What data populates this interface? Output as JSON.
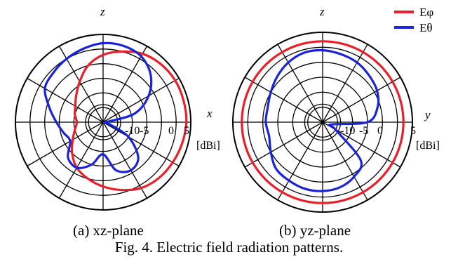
{
  "chart_data": [
    {
      "type": "polar-line",
      "plane_label": "(a)   xz-plane",
      "angular_axis_labels": {
        "top": "z",
        "right": "x"
      },
      "radial_ticks": [
        "-10",
        "-5",
        "0",
        "5"
      ],
      "radial_unit": "[dBi]",
      "radial_range": [
        -25,
        5
      ],
      "radial_gridlines": [
        -25,
        -20,
        -15,
        -10,
        -5,
        0,
        5
      ],
      "angular_gridline_step_deg": 30,
      "angle_convention": "degrees from z (top), clockwise toward x (right)",
      "series": [
        {
          "name": "Eφ",
          "color": "#e8202a",
          "points": [
            [
              0,
              -2
            ],
            [
              15,
              0
            ],
            [
              30,
              2
            ],
            [
              45,
              3
            ],
            [
              60,
              3.5
            ],
            [
              75,
              3.5
            ],
            [
              90,
              3.5
            ],
            [
              105,
              3
            ],
            [
              120,
              2.5
            ],
            [
              135,
              2
            ],
            [
              150,
              1
            ],
            [
              165,
              -1
            ],
            [
              180,
              -3
            ],
            [
              195,
              -5
            ],
            [
              210,
              -7
            ],
            [
              225,
              -10
            ],
            [
              240,
              -13
            ],
            [
              255,
              -15
            ],
            [
              270,
              -16
            ],
            [
              285,
              -15
            ],
            [
              300,
              -14
            ],
            [
              315,
              -12
            ],
            [
              330,
              -9
            ],
            [
              345,
              -5
            ],
            [
              360,
              -2
            ]
          ]
        },
        {
          "name": "Eθ",
          "color": "#1a24d6",
          "points": [
            [
              0,
              2
            ],
            [
              15,
              2
            ],
            [
              30,
              1
            ],
            [
              45,
              -2
            ],
            [
              60,
              -7
            ],
            [
              75,
              -14
            ],
            [
              90,
              -24
            ],
            [
              105,
              -23
            ],
            [
              120,
              -15
            ],
            [
              135,
              -8
            ],
            [
              150,
              -6
            ],
            [
              165,
              -8
            ],
            [
              180,
              -14
            ],
            [
              195,
              -10
            ],
            [
              210,
              -7
            ],
            [
              225,
              -8
            ],
            [
              240,
              -12
            ],
            [
              255,
              -11
            ],
            [
              270,
              -9
            ],
            [
              285,
              -6
            ],
            [
              300,
              -2
            ],
            [
              315,
              -1
            ],
            [
              330,
              0
            ],
            [
              345,
              1
            ],
            [
              360,
              2
            ]
          ]
        }
      ]
    },
    {
      "type": "polar-line",
      "plane_label": "(b)   yz-plane",
      "angular_axis_labels": {
        "top": "z",
        "right": "y"
      },
      "radial_ticks": [
        "-10",
        "-5",
        "0",
        "5"
      ],
      "radial_unit": "[dBi]",
      "radial_range": [
        -25,
        5
      ],
      "radial_gridlines": [
        -25,
        -20,
        -15,
        -10,
        -5,
        0,
        5
      ],
      "angular_gridline_step_deg": 30,
      "angle_convention": "degrees from z (top), clockwise toward y (right)",
      "series": [
        {
          "name": "Eφ",
          "color": "#e8202a",
          "points": [
            [
              0,
              2
            ],
            [
              15,
              2
            ],
            [
              30,
              2
            ],
            [
              45,
              2
            ],
            [
              60,
              2
            ],
            [
              75,
              2
            ],
            [
              90,
              2
            ],
            [
              105,
              2
            ],
            [
              120,
              2
            ],
            [
              135,
              2
            ],
            [
              150,
              2
            ],
            [
              165,
              2
            ],
            [
              180,
              2
            ],
            [
              195,
              2
            ],
            [
              210,
              2
            ],
            [
              225,
              2
            ],
            [
              240,
              2
            ],
            [
              255,
              2
            ],
            [
              270,
              2
            ],
            [
              285,
              2
            ],
            [
              300,
              2
            ],
            [
              315,
              2
            ],
            [
              330,
              2
            ],
            [
              345,
              2
            ],
            [
              360,
              2
            ]
          ]
        },
        {
          "name": "Eθ",
          "color": "#1a24d6",
          "points": [
            [
              0,
              -1
            ],
            [
              15,
              -1.5
            ],
            [
              30,
              -2
            ],
            [
              45,
              -3
            ],
            [
              60,
              -4
            ],
            [
              75,
              -6
            ],
            [
              90,
              -10
            ],
            [
              105,
              -22
            ],
            [
              120,
              -20
            ],
            [
              135,
              -7
            ],
            [
              150,
              -4
            ],
            [
              165,
              -2.5
            ],
            [
              180,
              -2
            ],
            [
              195,
              -2
            ],
            [
              210,
              -2.5
            ],
            [
              225,
              -3
            ],
            [
              240,
              -5
            ],
            [
              255,
              -6.5
            ],
            [
              270,
              -6
            ],
            [
              285,
              -6
            ],
            [
              300,
              -5
            ],
            [
              315,
              -3.5
            ],
            [
              330,
              -2
            ],
            [
              345,
              -1
            ],
            [
              360,
              -1
            ]
          ]
        }
      ]
    }
  ],
  "legend": [
    {
      "label": "Eφ",
      "color": "#e8202a"
    },
    {
      "label": "Eθ",
      "color": "#1a24d6"
    }
  ],
  "caption": "Fig. 4. Electric field radiation patterns."
}
